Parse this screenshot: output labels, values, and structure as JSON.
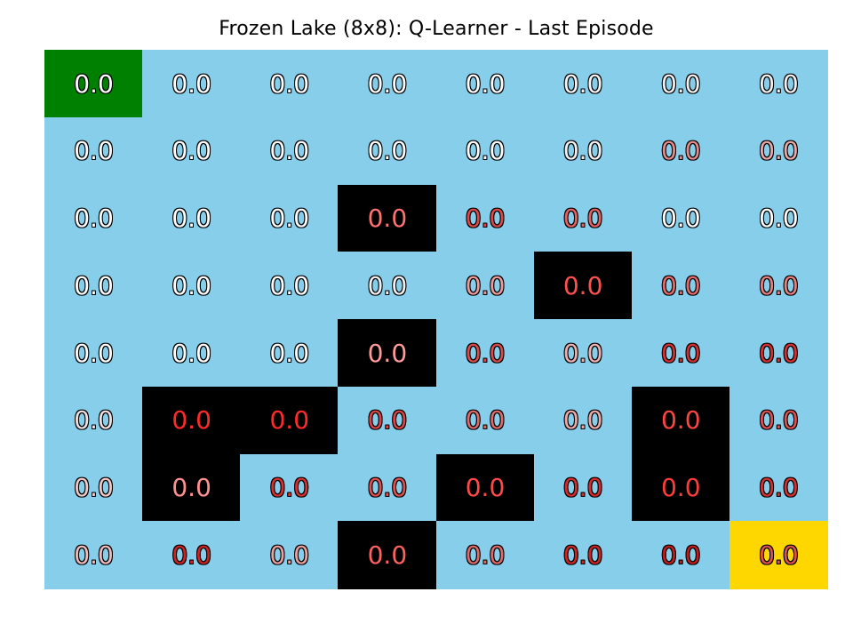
{
  "chart_data": {
    "type": "heatmap",
    "title": "Frozen Lake (8x8): Q-Learner - Last Episode",
    "rows": 8,
    "cols": 8,
    "values": [
      [
        0.0,
        0.0,
        0.0,
        0.0,
        0.0,
        0.0,
        0.0,
        0.0
      ],
      [
        0.0,
        0.0,
        0.0,
        0.0,
        0.0,
        0.0,
        0.0,
        0.0
      ],
      [
        0.0,
        0.0,
        0.0,
        0.0,
        0.0,
        0.0,
        0.0,
        0.0
      ],
      [
        0.0,
        0.0,
        0.0,
        0.0,
        0.0,
        0.0,
        0.0,
        0.0
      ],
      [
        0.0,
        0.0,
        0.0,
        0.0,
        0.0,
        0.0,
        0.0,
        0.0
      ],
      [
        0.0,
        0.0,
        0.0,
        0.0,
        0.0,
        0.0,
        0.0,
        0.0
      ],
      [
        0.0,
        0.0,
        0.0,
        0.0,
        0.0,
        0.0,
        0.0,
        0.0
      ],
      [
        0.0,
        0.0,
        0.0,
        0.0,
        0.0,
        0.0,
        0.0,
        0.0
      ]
    ],
    "cell_labels": [
      [
        "0.0",
        "0.0",
        "0.0",
        "0.0",
        "0.0",
        "0.0",
        "0.0",
        "0.0"
      ],
      [
        "0.0",
        "0.0",
        "0.0",
        "0.0",
        "0.0",
        "0.0",
        "0.0",
        "0.0"
      ],
      [
        "0.0",
        "0.0",
        "0.0",
        "0.0",
        "0.0",
        "0.0",
        "0.0",
        "0.0"
      ],
      [
        "0.0",
        "0.0",
        "0.0",
        "0.0",
        "0.0",
        "0.0",
        "0.0",
        "0.0"
      ],
      [
        "0.0",
        "0.0",
        "0.0",
        "0.0",
        "0.0",
        "0.0",
        "0.0",
        "0.0"
      ],
      [
        "0.0",
        "0.0",
        "0.0",
        "0.0",
        "0.0",
        "0.0",
        "0.0",
        "0.0"
      ],
      [
        "0.0",
        "0.0",
        "0.0",
        "0.0",
        "0.0",
        "0.0",
        "0.0",
        "0.0"
      ],
      [
        "0.0",
        "0.0",
        "0.0",
        "0.0",
        "0.0",
        "0.0",
        "0.0",
        "0.0"
      ]
    ],
    "tiles": [
      [
        "S",
        "F",
        "F",
        "F",
        "F",
        "F",
        "F",
        "F"
      ],
      [
        "F",
        "F",
        "F",
        "F",
        "F",
        "F",
        "F",
        "F"
      ],
      [
        "F",
        "F",
        "F",
        "H",
        "F",
        "F",
        "F",
        "F"
      ],
      [
        "F",
        "F",
        "F",
        "F",
        "F",
        "H",
        "F",
        "F"
      ],
      [
        "F",
        "F",
        "F",
        "H",
        "F",
        "F",
        "F",
        "F"
      ],
      [
        "F",
        "H",
        "H",
        "F",
        "F",
        "F",
        "H",
        "F"
      ],
      [
        "F",
        "H",
        "F",
        "F",
        "H",
        "F",
        "H",
        "F"
      ],
      [
        "F",
        "F",
        "F",
        "H",
        "F",
        "F",
        "F",
        "G"
      ]
    ],
    "tile_colors": {
      "S": "#008000",
      "F": "#87ceeb",
      "H": "#000000",
      "G": "#ffd700"
    },
    "label_colors": [
      [
        "#ffffff",
        "#ffffff",
        "#ffffff",
        "#ffffff",
        "#ffffff",
        "#f4f4f4",
        "#f0f0f0",
        "#f0f0f0"
      ],
      [
        "#ffffff",
        "#ffffff",
        "#ffffff",
        "#ffffff",
        "#ffffff",
        "#f0f0f0",
        "#e88a8a",
        "#eca8a8"
      ],
      [
        "#ffffff",
        "#ffffff",
        "#ffffff",
        "#ff7070",
        "#e04848",
        "#e86060",
        "#ffffff",
        "#ffffff"
      ],
      [
        "#ffffff",
        "#ffffff",
        "#ffffff",
        "#f0f0f0",
        "#ee9a9a",
        "#ff5050",
        "#e66a6a",
        "#e88080"
      ],
      [
        "#ffffff",
        "#ffffff",
        "#ffffff",
        "#ff9a9a",
        "#dd4a4a",
        "#eeb0b0",
        "#d83030",
        "#d83030"
      ],
      [
        "#f0e0e0",
        "#ff2a2a",
        "#ff2a2a",
        "#dd4444",
        "#e06a6a",
        "#eea8a8",
        "#ff4444",
        "#e05050"
      ],
      [
        "#f0c8c8",
        "#ff9090",
        "#d83030",
        "#e05050",
        "#ff4848",
        "#d82a2a",
        "#ff3c3c",
        "#d83030"
      ],
      [
        "#eebcbc",
        "#d02222",
        "#eca0a0",
        "#ff6060",
        "#e06a6a",
        "#d02424",
        "#c81a1a",
        "#e05050"
      ]
    ]
  }
}
